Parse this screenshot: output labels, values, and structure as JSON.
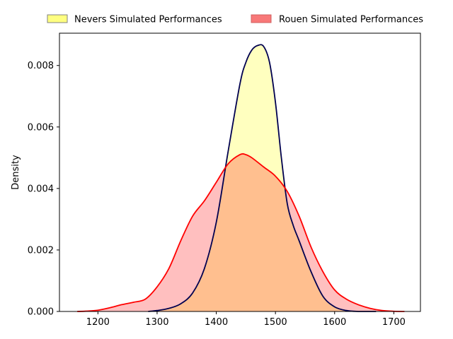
{
  "chart_data": {
    "type": "area",
    "title": "",
    "xlabel": "",
    "ylabel": "Density",
    "xlim": [
      1135,
      1745
    ],
    "ylim": [
      0,
      0.00905
    ],
    "xticks": [
      1200,
      1300,
      1400,
      1500,
      1600,
      1700
    ],
    "yticks": [
      0.0,
      0.002,
      0.004,
      0.006,
      0.008
    ],
    "ytick_labels": [
      "0.000",
      "0.002",
      "0.004",
      "0.006",
      "0.008"
    ],
    "grid": false,
    "legend_position": "top-center",
    "series": [
      {
        "name": "Nevers Simulated Performances",
        "line_color": "#000050",
        "fill_color": "#ffff00",
        "legend_fill": "#ffff80",
        "fill_opacity": 0.25,
        "x": [
          1285,
          1300,
          1320,
          1340,
          1360,
          1380,
          1400,
          1420,
          1440,
          1450,
          1460,
          1470,
          1480,
          1490,
          1500,
          1510,
          1520,
          1530,
          1540,
          1560,
          1580,
          1600,
          1620,
          1640,
          1660,
          1670
        ],
        "y": [
          0.0,
          3e-05,
          0.0001,
          0.00025,
          0.0006,
          0.0014,
          0.0029,
          0.0052,
          0.0074,
          0.0081,
          0.0085,
          0.00865,
          0.00862,
          0.0081,
          0.0068,
          0.005,
          0.0035,
          0.0028,
          0.0023,
          0.0013,
          0.0005,
          0.00015,
          3e-05,
          0.0,
          0.0,
          0.0
        ]
      },
      {
        "name": "Rouen Simulated Performances",
        "line_color": "#ff0000",
        "fill_color": "#ff0000",
        "legend_fill": "#f87878",
        "fill_opacity": 0.25,
        "x": [
          1165,
          1180,
          1200,
          1220,
          1240,
          1260,
          1280,
          1300,
          1320,
          1340,
          1360,
          1380,
          1400,
          1420,
          1440,
          1450,
          1460,
          1480,
          1500,
          1520,
          1540,
          1560,
          1580,
          1600,
          1620,
          1640,
          1660,
          1680,
          1700,
          1718
        ],
        "y": [
          0.0,
          1e-05,
          4e-05,
          0.00012,
          0.00022,
          0.0003,
          0.0004,
          0.0008,
          0.0014,
          0.0023,
          0.0031,
          0.0036,
          0.0042,
          0.0048,
          0.0051,
          0.0051,
          0.005,
          0.0047,
          0.0044,
          0.0039,
          0.0031,
          0.0021,
          0.0013,
          0.0007,
          0.0004,
          0.00022,
          0.0001,
          3e-05,
          5e-06,
          0.0
        ]
      }
    ]
  }
}
